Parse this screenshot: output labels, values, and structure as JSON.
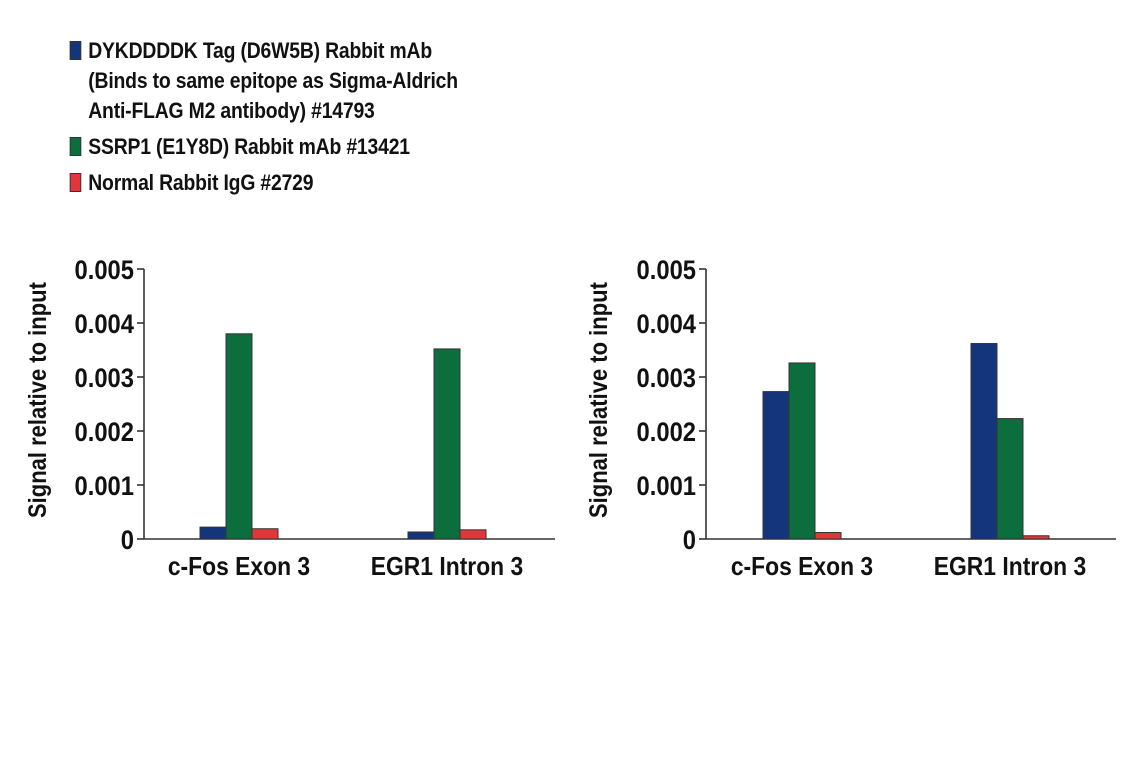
{
  "legend": {
    "items": [
      {
        "label_lines": [
          "DYKDDDDK Tag (D6W5B) Rabbit mAb",
          "(Binds to same epitope as Sigma-Aldrich",
          "Anti-FLAG M2 antibody) #14793"
        ],
        "color": "#15357b"
      },
      {
        "label_lines": [
          "SSRP1 (E1Y8D) Rabbit mAb #13421"
        ],
        "color": "#0b6e3c"
      },
      {
        "label_lines": [
          "Normal Rabbit IgG #2729"
        ],
        "color": "#e1363a"
      }
    ]
  },
  "chart_data": [
    {
      "type": "bar",
      "title": "",
      "xlabel": "",
      "ylabel": "Signal relative to input",
      "ylim": [
        0,
        0.005
      ],
      "yticks": [
        "0",
        "0.001",
        "0.002",
        "0.003",
        "0.004",
        "0.005"
      ],
      "grid": false,
      "legend_position": "top-left (shared)",
      "categories": [
        "c-Fos Exon 3",
        "EGR1 Intron 3"
      ],
      "series": [
        {
          "name": "DYKDDDDK Tag (D6W5B) Rabbit mAb (Binds to same epitope as Sigma-Aldrich Anti-FLAG M2 antibody) #14793",
          "color": "#15357b",
          "values": [
            0.00022,
            0.00013
          ]
        },
        {
          "name": "SSRP1 (E1Y8D) Rabbit mAb #13421",
          "color": "#0b6e3c",
          "values": [
            0.0038,
            0.00352
          ]
        },
        {
          "name": "Normal Rabbit IgG #2729",
          "color": "#e1363a",
          "values": [
            0.00019,
            0.00017
          ]
        }
      ]
    },
    {
      "type": "bar",
      "title": "",
      "xlabel": "",
      "ylabel": "Signal relative to input",
      "ylim": [
        0,
        0.005
      ],
      "yticks": [
        "0",
        "0.001",
        "0.002",
        "0.003",
        "0.004",
        "0.005"
      ],
      "grid": false,
      "legend_position": "top-left (shared)",
      "categories": [
        "c-Fos Exon 3",
        "EGR1 Intron 3"
      ],
      "series": [
        {
          "name": "DYKDDDDK Tag (D6W5B) Rabbit mAb (Binds to same epitope as Sigma-Aldrich Anti-FLAG M2 antibody) #14793",
          "color": "#15357b",
          "values": [
            0.00273,
            0.00362
          ]
        },
        {
          "name": "SSRP1 (E1Y8D) Rabbit mAb #13421",
          "color": "#0b6e3c",
          "values": [
            0.00326,
            0.00223
          ]
        },
        {
          "name": "Normal Rabbit IgG #2729",
          "color": "#e1363a",
          "values": [
            0.00012,
            6e-05
          ]
        }
      ]
    }
  ]
}
